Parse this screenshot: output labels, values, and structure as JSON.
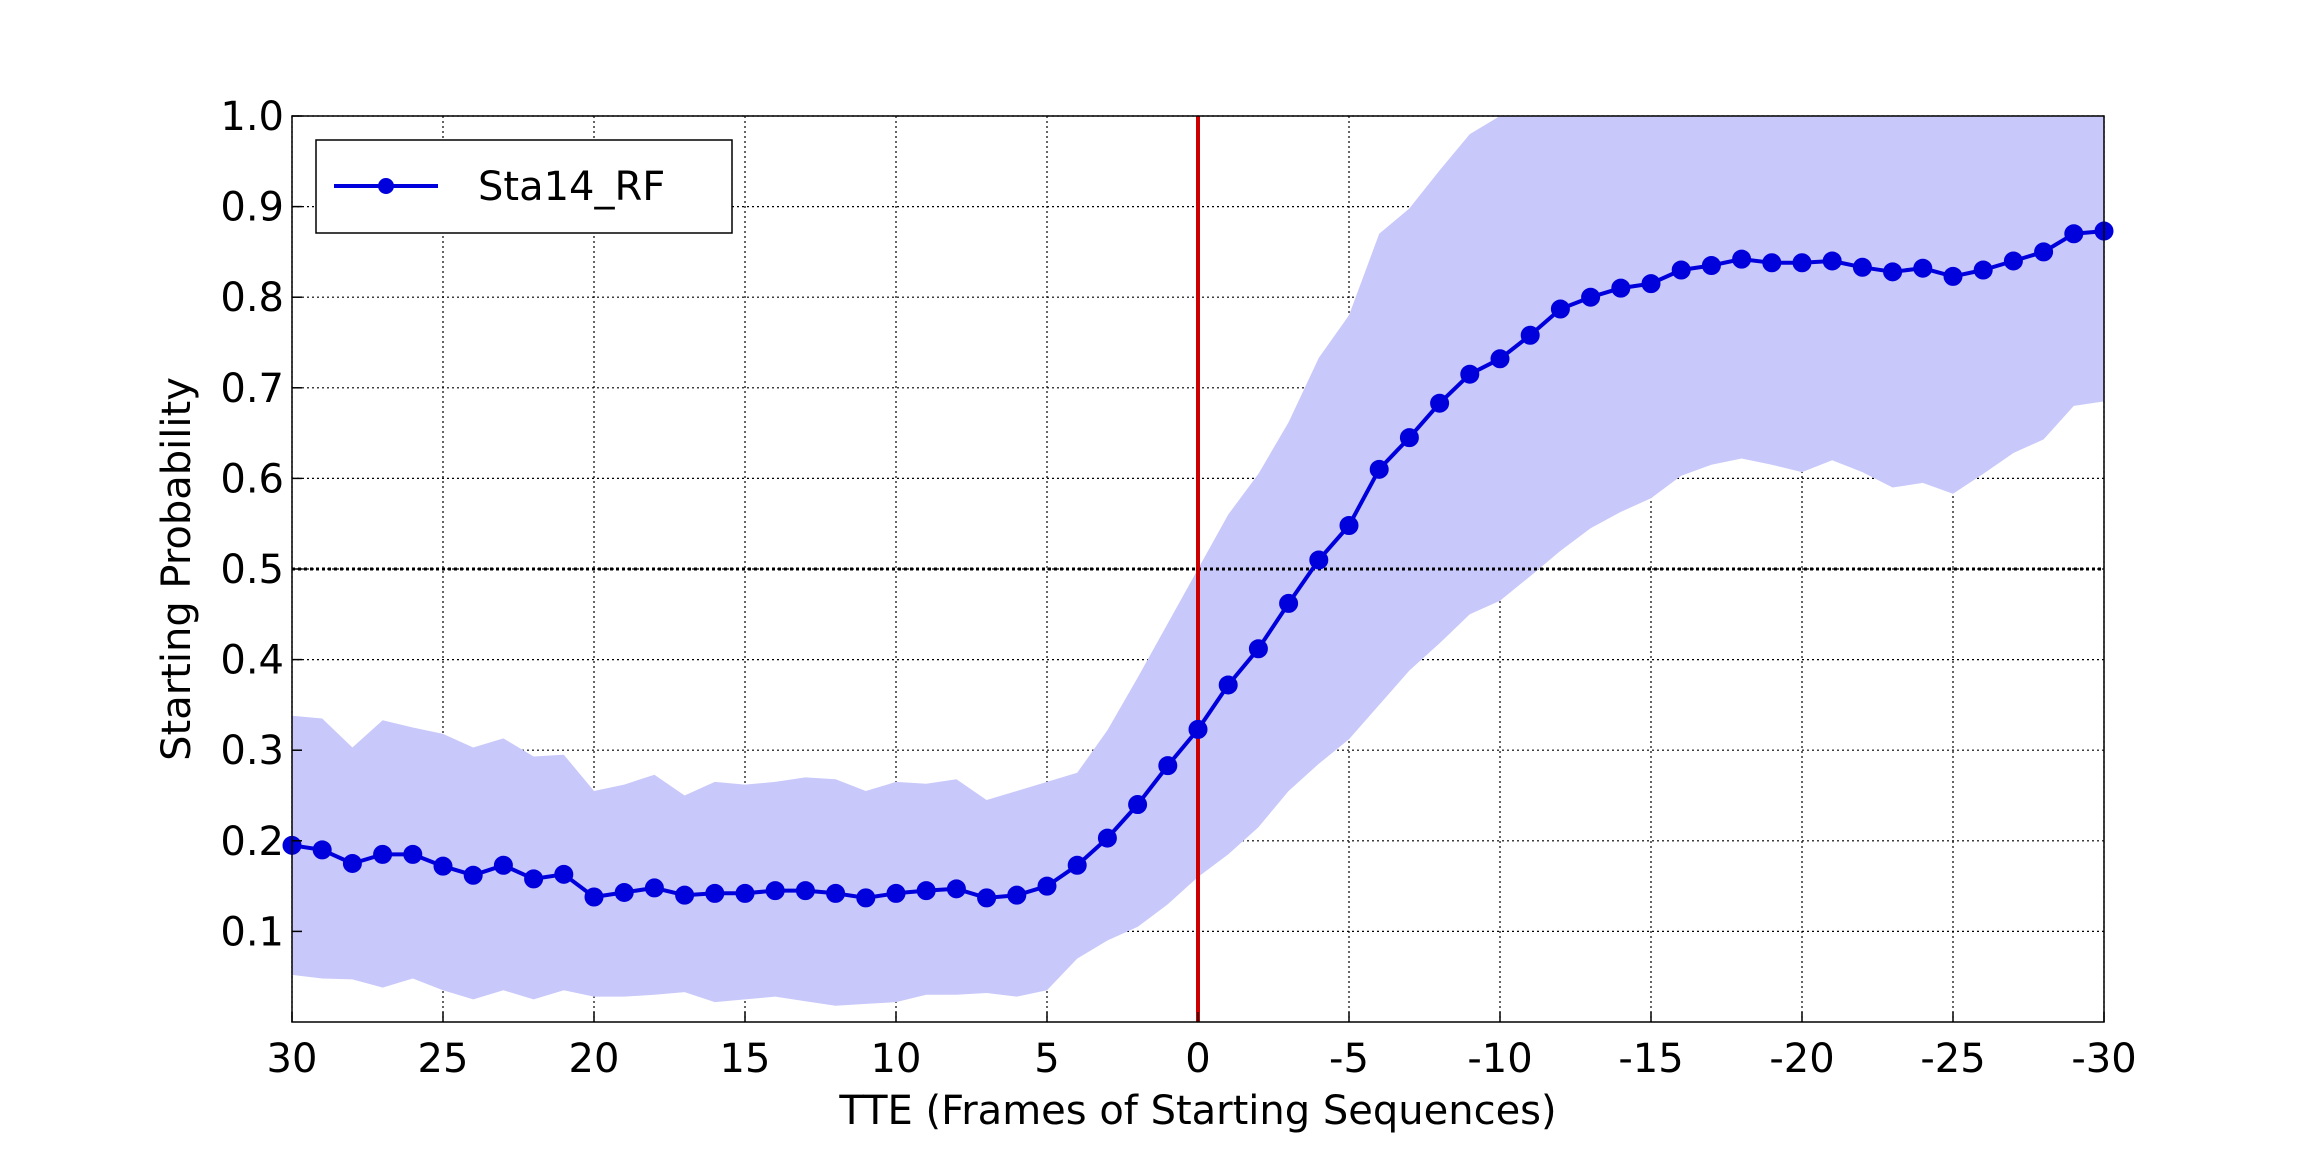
{
  "chart_data": {
    "type": "line",
    "title": "",
    "xlabel": "TTE (Frames of Starting Sequences)",
    "ylabel": "Starting Probability",
    "xlim": [
      30,
      -30
    ],
    "ylim": [
      0.0,
      1.0
    ],
    "x_reversed": true,
    "grid": true,
    "legend_placement": "top-left",
    "x_ticks": [
      30,
      25,
      20,
      15,
      10,
      5,
      0,
      -5,
      -10,
      -15,
      -20,
      -25,
      -30
    ],
    "x_tick_labels": [
      "30",
      "25",
      "20",
      "15",
      "10",
      "5",
      "0",
      "-5",
      "-10",
      "-15",
      "-20",
      "-25",
      "-30"
    ],
    "y_ticks": [
      0.1,
      0.2,
      0.3,
      0.4,
      0.5,
      0.6,
      0.7,
      0.8,
      0.9,
      1.0
    ],
    "y_tick_labels": [
      "0.1",
      "0.2",
      "0.3",
      "0.4",
      "0.5",
      "0.6",
      "0.7",
      "0.8",
      "0.9",
      "1.0"
    ],
    "reference_lines": [
      {
        "orientation": "horizontal",
        "value": 0.5,
        "style": "dotted",
        "color": "#000000"
      },
      {
        "orientation": "vertical",
        "value": 0,
        "style": "solid",
        "color": "#cc0000"
      }
    ],
    "x": [
      30,
      29,
      28,
      27,
      26,
      25,
      24,
      23,
      22,
      21,
      20,
      19,
      18,
      17,
      16,
      15,
      14,
      13,
      12,
      11,
      10,
      9,
      8,
      7,
      6,
      5,
      4,
      3,
      2,
      1,
      0,
      -1,
      -2,
      -3,
      -4,
      -5,
      -6,
      -7,
      -8,
      -9,
      -10,
      -11,
      -12,
      -13,
      -14,
      -15,
      -16,
      -17,
      -18,
      -19,
      -20,
      -21,
      -22,
      -23,
      -24,
      -25,
      -26,
      -27,
      -28,
      -29,
      -30
    ],
    "series": [
      {
        "name": "Sta14_RF",
        "color": "#0000dd",
        "marker": "circle",
        "values": [
          0.195,
          0.19,
          0.175,
          0.185,
          0.185,
          0.172,
          0.162,
          0.173,
          0.158,
          0.163,
          0.138,
          0.143,
          0.148,
          0.14,
          0.142,
          0.142,
          0.145,
          0.145,
          0.142,
          0.137,
          0.142,
          0.145,
          0.147,
          0.137,
          0.14,
          0.15,
          0.173,
          0.203,
          0.24,
          0.283,
          0.323,
          0.372,
          0.412,
          0.462,
          0.51,
          0.548,
          0.61,
          0.645,
          0.683,
          0.715,
          0.732,
          0.758,
          0.787,
          0.8,
          0.81,
          0.815,
          0.83,
          0.835,
          0.842,
          0.838,
          0.838,
          0.84,
          0.833,
          0.828,
          0.832,
          0.823,
          0.83,
          0.84,
          0.85,
          0.87,
          0.873
        ],
        "band_upper": [
          0.338,
          0.335,
          0.303,
          0.333,
          0.325,
          0.318,
          0.303,
          0.313,
          0.293,
          0.295,
          0.255,
          0.262,
          0.273,
          0.25,
          0.265,
          0.262,
          0.265,
          0.27,
          0.268,
          0.255,
          0.265,
          0.263,
          0.268,
          0.245,
          0.255,
          0.265,
          0.275,
          0.322,
          0.38,
          0.44,
          0.5,
          0.56,
          0.605,
          0.662,
          0.733,
          0.78,
          0.87,
          0.898,
          0.94,
          0.98,
          1.0,
          1.0,
          1.0,
          1.0,
          1.0,
          1.0,
          1.0,
          1.0,
          1.0,
          1.0,
          1.0,
          1.0,
          1.0,
          1.0,
          1.0,
          1.0,
          1.0,
          1.0,
          1.0,
          1.0,
          1.0
        ],
        "band_lower": [
          0.052,
          0.048,
          0.047,
          0.038,
          0.048,
          0.035,
          0.025,
          0.035,
          0.025,
          0.035,
          0.028,
          0.028,
          0.03,
          0.033,
          0.022,
          0.025,
          0.028,
          0.023,
          0.018,
          0.02,
          0.022,
          0.03,
          0.03,
          0.032,
          0.028,
          0.035,
          0.07,
          0.09,
          0.105,
          0.13,
          0.16,
          0.185,
          0.215,
          0.255,
          0.285,
          0.312,
          0.35,
          0.388,
          0.418,
          0.45,
          0.465,
          0.492,
          0.52,
          0.545,
          0.563,
          0.578,
          0.603,
          0.615,
          0.622,
          0.615,
          0.607,
          0.62,
          0.607,
          0.59,
          0.595,
          0.583,
          0.605,
          0.628,
          0.643,
          0.68,
          0.685
        ]
      }
    ]
  }
}
